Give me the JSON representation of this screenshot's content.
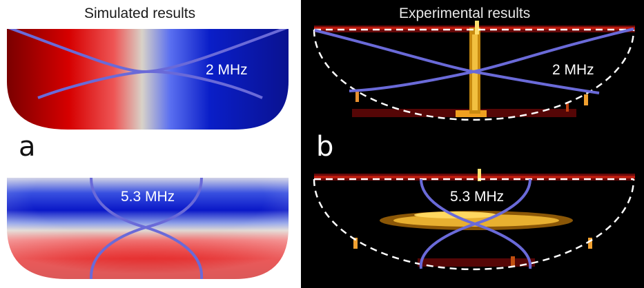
{
  "titles": {
    "simulated": "Simulated results",
    "experimental": "Experimental results"
  },
  "panel_labels": {
    "a": "a",
    "b": "b"
  },
  "frequencies": {
    "sim_top": "2 MHz",
    "sim_bottom": "5.3 MHz",
    "exp_top": "2 MHz",
    "exp_bottom": "5.3 MHz"
  },
  "colors": {
    "mode_curve": "#6a6ad8",
    "hot_red": "#d40000",
    "cold_blue": "#0a1ec8",
    "neutral": "#cfcfcf",
    "hot_speckle": "#ffd84a"
  }
}
